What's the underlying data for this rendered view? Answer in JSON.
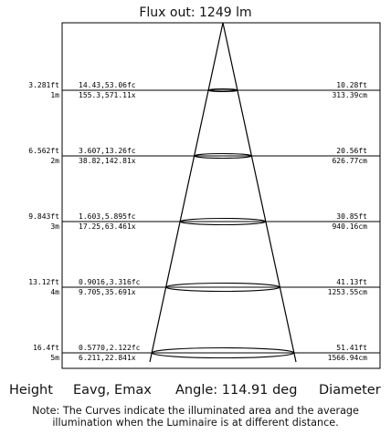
{
  "flux_label": "Flux out: 1249 lm",
  "rows": [
    {
      "height_ft": "3.281ft",
      "height_m": "1m",
      "eavg_emax_fc": "14.43,53.06fc",
      "eavg_emax_lx": "155.3,571.11x",
      "diameter_ft": "10.28ft",
      "diameter_cm": "313.39cm"
    },
    {
      "height_ft": "6.562ft",
      "height_m": "2m",
      "eavg_emax_fc": "3.607,13.26fc",
      "eavg_emax_lx": "38.82,142.81x",
      "diameter_ft": "20.56ft",
      "diameter_cm": "626.77cm"
    },
    {
      "height_ft": "9.843ft",
      "height_m": "3m",
      "eavg_emax_fc": "1.603,5.895fc",
      "eavg_emax_lx": "17.25,63.461x",
      "diameter_ft": "30.85ft",
      "diameter_cm": "940.16cm"
    },
    {
      "height_ft": "13.12ft",
      "height_m": "4m",
      "eavg_emax_fc": "0.9016,3.316fc",
      "eavg_emax_lx": "9.705,35.691x",
      "diameter_ft": "41.13ft",
      "diameter_cm": "1253.55cm"
    },
    {
      "height_ft": "16.4ft",
      "height_m": "5m",
      "eavg_emax_fc": "0.5770,2.122fc",
      "eavg_emax_lx": "6.211,22.841x",
      "diameter_ft": "51.41ft",
      "diameter_cm": "1566.94cm"
    }
  ],
  "footer": {
    "height_label": "Height",
    "eavg_label": "Eavg, Emax",
    "angle_label": "Angle: 114.91 deg",
    "diameter_label": "Diameter"
  },
  "note_line1": "Note: The Curves indicate the illuminated area and the average",
  "note_line2": "illumination when the Luminaire is at different distance."
}
